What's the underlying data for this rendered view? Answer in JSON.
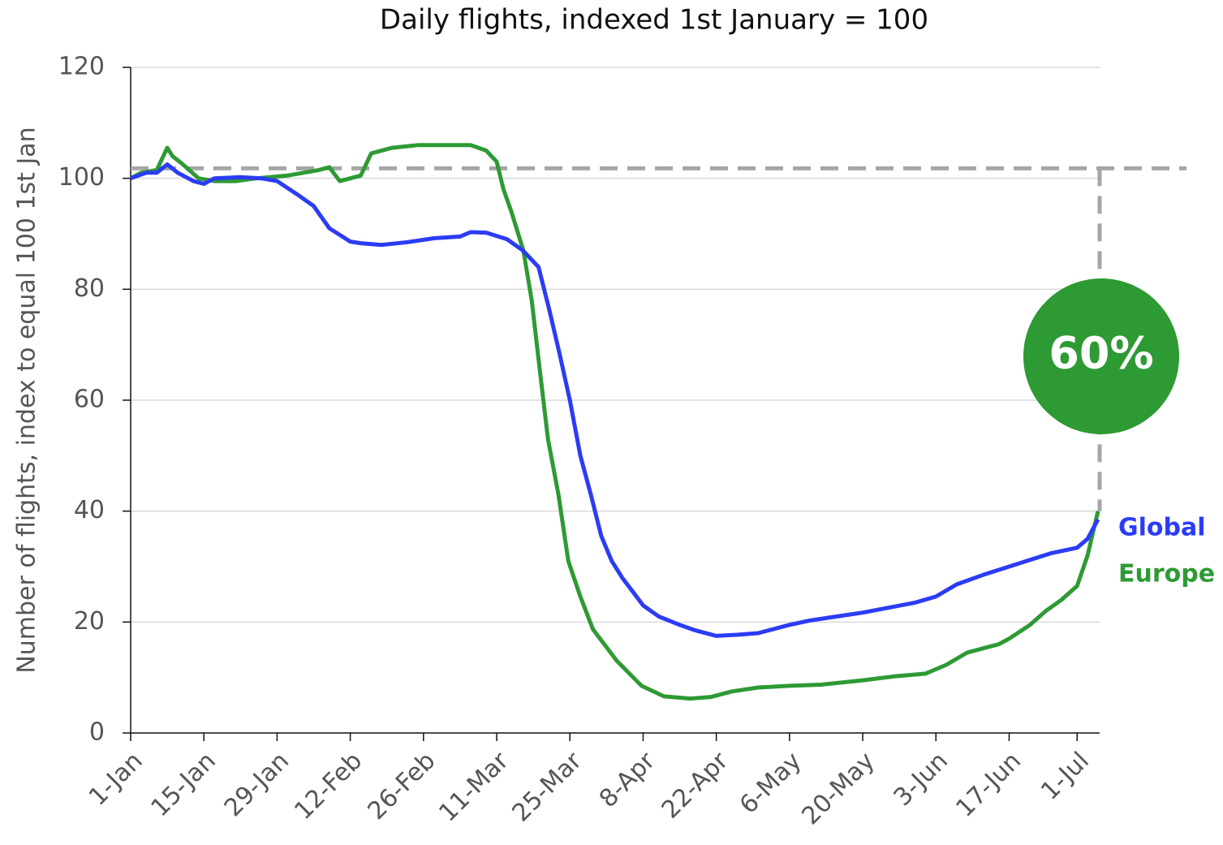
{
  "chart_data": {
    "type": "line",
    "title": "Daily flights, indexed 1st January = 100",
    "y_label": "Number of flights, index to equal 100 1st Jan",
    "xlim": [
      0,
      185
    ],
    "xticks": [
      {
        "value": 0,
        "label": "1-Jan"
      },
      {
        "value": 14,
        "label": "15-Jan"
      },
      {
        "value": 28,
        "label": "29-Jan"
      },
      {
        "value": 42,
        "label": "12-Feb"
      },
      {
        "value": 56,
        "label": "26-Feb"
      },
      {
        "value": 70,
        "label": "11-Mar"
      },
      {
        "value": 84,
        "label": "25-Mar"
      },
      {
        "value": 98,
        "label": "8-Apr"
      },
      {
        "value": 112,
        "label": "22-Apr"
      },
      {
        "value": 126,
        "label": "6-May"
      },
      {
        "value": 140,
        "label": "20-May"
      },
      {
        "value": 154,
        "label": "3-Jun"
      },
      {
        "value": 168,
        "label": "17-Jun"
      },
      {
        "value": 181,
        "label": "1-Jul"
      }
    ],
    "ylim": [
      0,
      120
    ],
    "yticks": [
      0,
      20,
      40,
      60,
      80,
      100,
      120
    ],
    "grid": true,
    "reference_line": 101.8,
    "annotation": "60%",
    "annotation_color": "#2e9a34",
    "series": [
      {
        "name": "Global",
        "color": "#2b3cf5",
        "x": [
          0,
          3,
          5,
          7,
          9,
          12,
          14,
          16,
          21,
          25,
          28,
          32,
          35,
          38,
          42,
          44,
          48,
          53,
          58,
          63,
          65,
          68,
          72,
          75,
          78,
          80,
          82,
          84,
          86,
          88,
          90,
          92,
          94,
          96,
          98,
          101,
          105,
          108,
          112,
          116,
          120,
          126,
          130,
          135,
          140,
          145,
          150,
          154,
          158,
          163,
          168,
          172,
          176,
          181,
          183,
          185
        ],
        "values": [
          100,
          101,
          101,
          102.5,
          101,
          99.5,
          99,
          100,
          100.2,
          100,
          99.5,
          97,
          95,
          91,
          88.6,
          88.3,
          88,
          88.5,
          89.2,
          89.5,
          90.3,
          90.2,
          89,
          87,
          84,
          76.5,
          68.5,
          60,
          50,
          43,
          35.5,
          31,
          28,
          25.5,
          23,
          21,
          19.5,
          18.5,
          17.5,
          17.7,
          18,
          19.5,
          20.3,
          21,
          21.7,
          22.6,
          23.5,
          24.6,
          26.8,
          28.5,
          30,
          31.2,
          32.4,
          33.4,
          35,
          38.5
        ]
      },
      {
        "name": "Europe",
        "color": "#2e9a34",
        "x": [
          0,
          2,
          5,
          7,
          8,
          10,
          13,
          16,
          20,
          24,
          30,
          36,
          38,
          40,
          44,
          46,
          50,
          55,
          60,
          65,
          68,
          70,
          71.3,
          72.8,
          75.1,
          76.7,
          78.3,
          79.8,
          81.8,
          83.7,
          86,
          88.4,
          93,
          97.7,
          102,
          107,
          111,
          115,
          120,
          126,
          132,
          140,
          146,
          152,
          156,
          160,
          164,
          166,
          168,
          172,
          175,
          178,
          181,
          183,
          185
        ],
        "values": [
          100,
          101,
          101.5,
          105.5,
          104,
          102.5,
          100,
          99.5,
          99.5,
          100,
          100.5,
          101.5,
          102,
          99.5,
          100.5,
          104.5,
          105.5,
          106,
          106,
          106,
          105,
          103,
          98,
          94,
          87,
          78,
          65,
          53,
          43,
          31,
          24.6,
          18.7,
          13,
          8.5,
          6.6,
          6.2,
          6.5,
          7.5,
          8.2,
          8.5,
          8.7,
          9.5,
          10.2,
          10.7,
          12.3,
          14.5,
          15.5,
          16,
          17,
          19.5,
          22,
          24,
          26.5,
          32,
          40
        ]
      }
    ]
  }
}
